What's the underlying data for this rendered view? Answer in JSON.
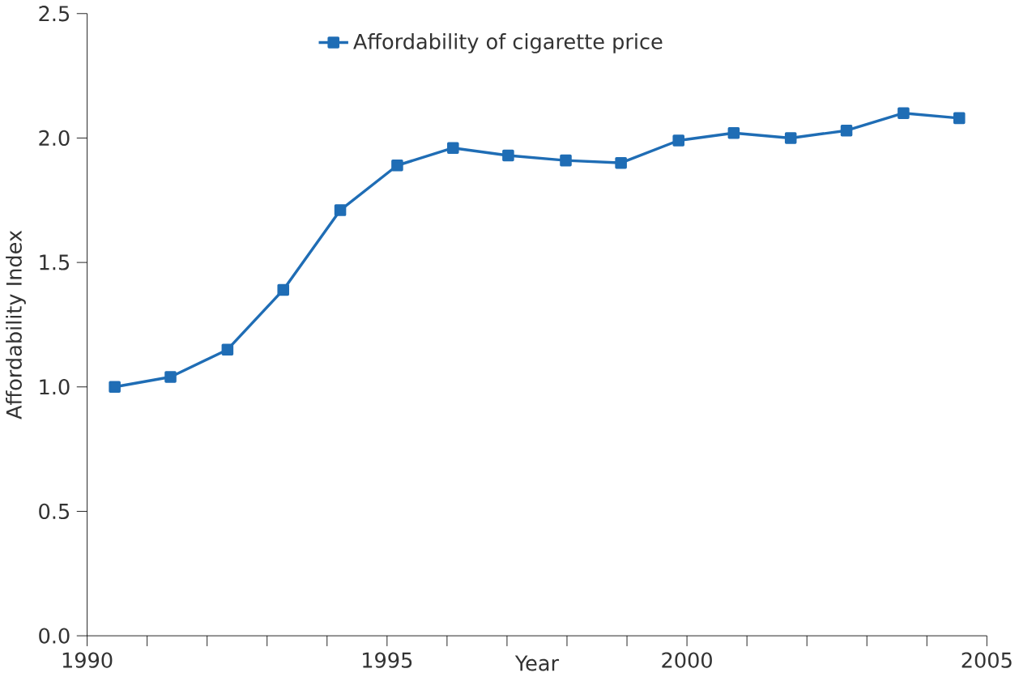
{
  "chart_data": {
    "type": "line",
    "xlabel": "Year",
    "ylabel": "Affordability Index",
    "x": [
      1990.46,
      1991.39,
      1992.34,
      1993.27,
      1994.22,
      1995.17,
      1996.1,
      1997.02,
      1997.98,
      1998.9,
      1999.86,
      2000.78,
      2001.73,
      2002.66,
      2003.61,
      2004.54
    ],
    "series": [
      {
        "name": "Affordability of cigarette price",
        "color": "#1f6db5",
        "values": [
          1.0,
          1.04,
          1.15,
          1.39,
          1.71,
          1.89,
          1.96,
          1.93,
          1.91,
          1.9,
          1.99,
          2.02,
          2.0,
          2.03,
          2.1,
          2.08
        ]
      }
    ],
    "xlim": [
      1990,
      2005
    ],
    "xticks": [
      1990,
      {
        "value": 1991,
        "label": null
      },
      {
        "value": 1992,
        "label": null
      },
      {
        "value": 1993,
        "label": null
      },
      {
        "value": 1994,
        "label": null
      },
      1995,
      {
        "value": 1996,
        "label": null
      },
      {
        "value": 1997,
        "label": null
      },
      {
        "value": 1998,
        "label": null
      },
      {
        "value": 1999,
        "label": null
      },
      2000,
      {
        "value": 2001,
        "label": null
      },
      {
        "value": 2002,
        "label": null
      },
      {
        "value": 2003,
        "label": null
      },
      {
        "value": 2004,
        "label": null
      },
      2005
    ],
    "ylim": [
      0,
      2.5
    ],
    "yticks": [
      {
        "value": 0,
        "label": "0.0"
      },
      0.5,
      {
        "value": 1,
        "label": "1.0"
      },
      1.5,
      {
        "value": 2,
        "label": "2.0"
      },
      2.5
    ],
    "legend": "top",
    "marker": "square",
    "line_style": "solid",
    "grid": false
  }
}
